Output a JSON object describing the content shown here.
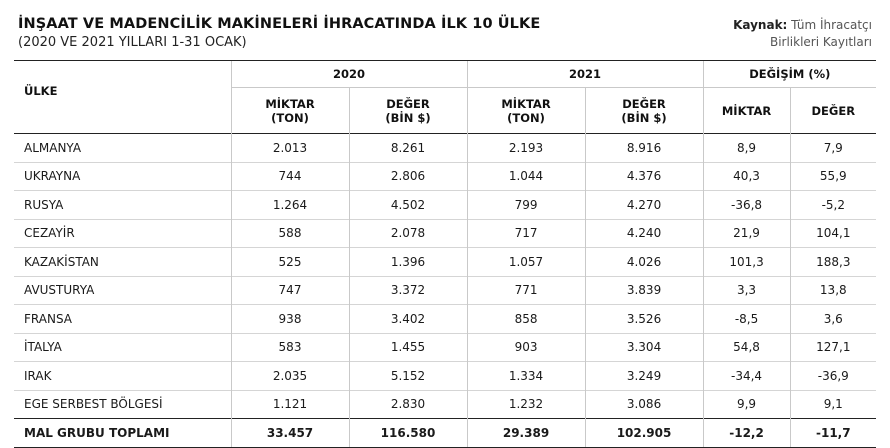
{
  "header": {
    "title": "İNŞAAT VE MADENCİLİK MAKİNELERİ İHRACATINDA İLK 10 ÜLKE",
    "subtitle": "(2020 VE 2021 YILLARI 1-31 OCAK)",
    "source_label": "Kaynak:",
    "source_line1": " Tüm İhracatçı",
    "source_line2": "Birlikleri Kayıtları"
  },
  "table": {
    "country_header": "ÜLKE",
    "groups": {
      "y2020": "2020",
      "y2021": "2021",
      "change": "DEĞİŞİM (%)"
    },
    "sub": {
      "qty_2020_a": "MİKTAR",
      "qty_2020_b": "(TON)",
      "val_2020_a": "DEĞER",
      "val_2020_b": "(BİN $)",
      "qty_2021_a": "MİKTAR",
      "qty_2021_b": "(TON)",
      "val_2021_a": "DEĞER",
      "val_2021_b": "(BİN $)",
      "chg_qty": "MİKTAR",
      "chg_val": "DEĞER"
    },
    "rows": [
      {
        "country": "ALMANYA",
        "q2020": "2.013",
        "v2020": "8.261",
        "q2021": "2.193",
        "v2021": "8.916",
        "cq": "8,9",
        "cv": "7,9"
      },
      {
        "country": "UKRAYNA",
        "q2020": "744",
        "v2020": "2.806",
        "q2021": "1.044",
        "v2021": "4.376",
        "cq": "40,3",
        "cv": "55,9"
      },
      {
        "country": "RUSYA",
        "q2020": "1.264",
        "v2020": "4.502",
        "q2021": "799",
        "v2021": "4.270",
        "cq": "-36,8",
        "cv": "-5,2"
      },
      {
        "country": "CEZAYİR",
        "q2020": "588",
        "v2020": "2.078",
        "q2021": "717",
        "v2021": "4.240",
        "cq": "21,9",
        "cv": "104,1"
      },
      {
        "country": "KAZAKİSTAN",
        "q2020": "525",
        "v2020": "1.396",
        "q2021": "1.057",
        "v2021": "4.026",
        "cq": "101,3",
        "cv": "188,3"
      },
      {
        "country": "AVUSTURYA",
        "q2020": "747",
        "v2020": "3.372",
        "q2021": "771",
        "v2021": "3.839",
        "cq": "3,3",
        "cv": "13,8"
      },
      {
        "country": "FRANSA",
        "q2020": "938",
        "v2020": "3.402",
        "q2021": "858",
        "v2021": "3.526",
        "cq": "-8,5",
        "cv": "3,6"
      },
      {
        "country": "İTALYA",
        "q2020": "583",
        "v2020": "1.455",
        "q2021": "903",
        "v2021": "3.304",
        "cq": "54,8",
        "cv": "127,1"
      },
      {
        "country": "IRAK",
        "q2020": "2.035",
        "v2020": "5.152",
        "q2021": "1.334",
        "v2021": "3.249",
        "cq": "-34,4",
        "cv": "-36,9"
      },
      {
        "country": "EGE SERBEST BÖLGESİ",
        "q2020": "1.121",
        "v2020": "2.830",
        "q2021": "1.232",
        "v2021": "3.086",
        "cq": "9,9",
        "cv": "9,1"
      }
    ],
    "total": {
      "country": "MAL GRUBU TOPLAMI",
      "q2020": "33.457",
      "v2020": "116.580",
      "q2021": "29.389",
      "v2021": "102.905",
      "cq": "-12,2",
      "cv": "-11,7"
    }
  }
}
